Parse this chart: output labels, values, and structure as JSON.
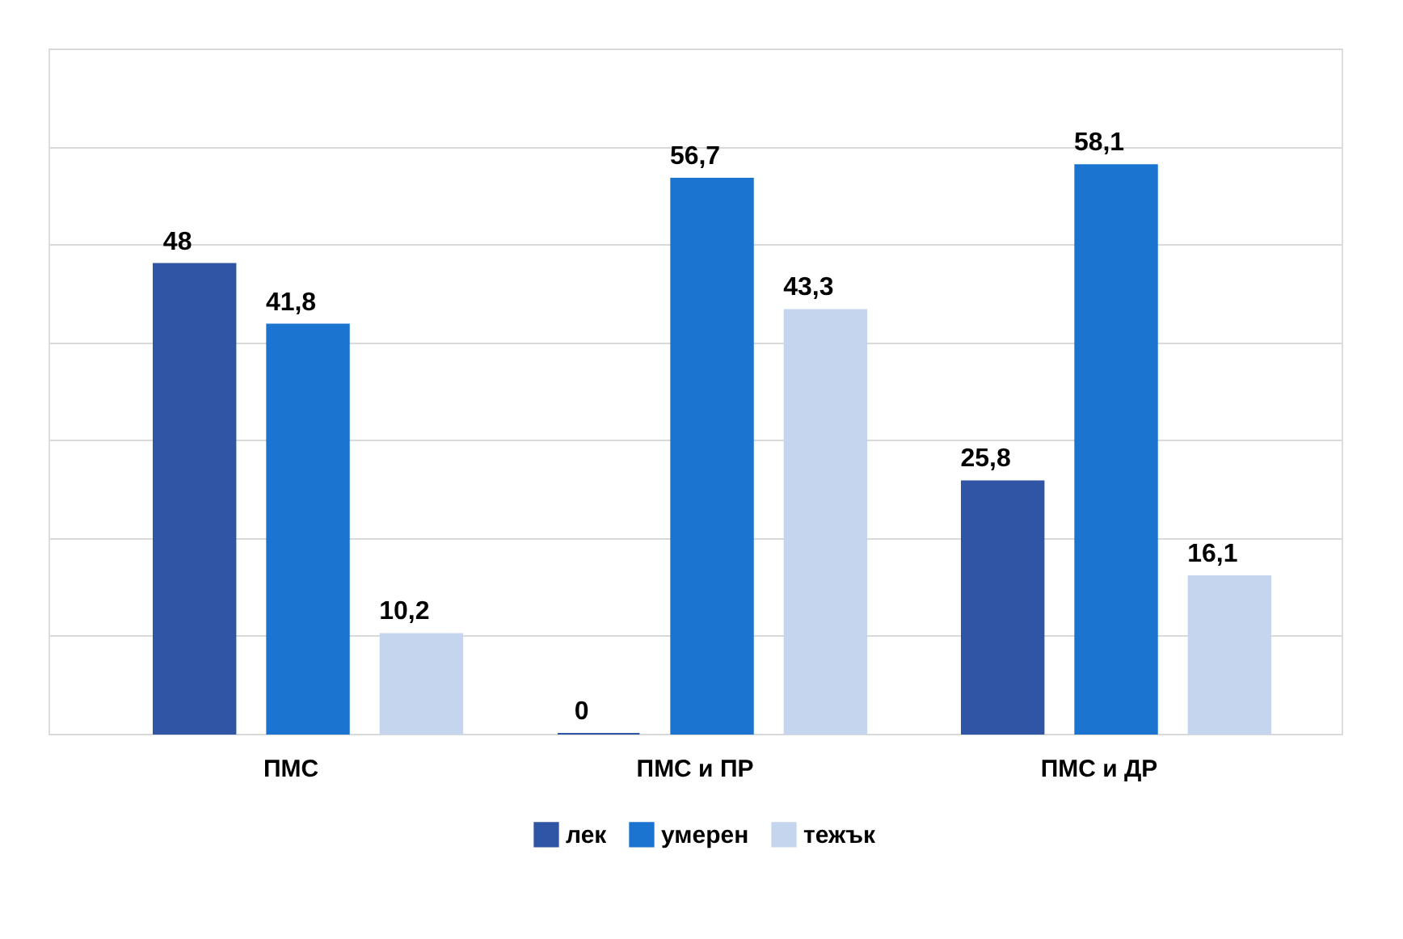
{
  "chart_data": {
    "type": "bar",
    "categories": [
      "ПМС",
      "ПМС и ПР",
      "ПМС и ДР"
    ],
    "series": [
      {
        "name": "лек",
        "color": "#2f55a4",
        "values": [
          48,
          0,
          25.8
        ],
        "value_labels": [
          "48",
          "0",
          "25,8"
        ]
      },
      {
        "name": "умерен",
        "color": "#1a74d0",
        "values": [
          41.8,
          56.7,
          58.1
        ],
        "value_labels": [
          "41,8",
          "56,7",
          "58,1"
        ]
      },
      {
        "name": "тежък",
        "color": "#c5d5ee",
        "values": [
          10.2,
          43.3,
          16.1
        ],
        "value_labels": [
          "10,2",
          "43,3",
          "16,1"
        ]
      }
    ],
    "ylim": [
      0,
      70
    ],
    "yticks": [
      {
        "value": 0,
        "label": null
      },
      {
        "value": 10,
        "label": null
      },
      {
        "value": 20,
        "label": null
      },
      {
        "value": 30,
        "label": null
      },
      {
        "value": 40,
        "label": null
      },
      {
        "value": 50,
        "label": null
      },
      {
        "value": 60,
        "label": null
      },
      {
        "value": 70,
        "label": null
      }
    ],
    "tick_labels": "x",
    "grid": "y",
    "legend": "bottom"
  }
}
